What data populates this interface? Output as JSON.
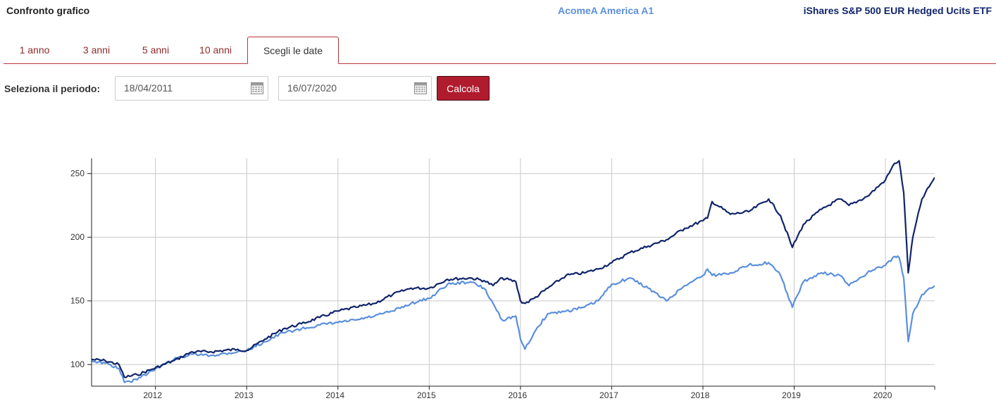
{
  "header": {
    "title": "Confronto grafico",
    "fund_a": "AcomeA America A1",
    "fund_b": "iShares S&P 500 EUR Hedged Ucits ETF"
  },
  "tabs": [
    {
      "label": "1 anno",
      "active": false
    },
    {
      "label": "3 anni",
      "active": false
    },
    {
      "label": "5 anni",
      "active": false
    },
    {
      "label": "10 anni",
      "active": false
    },
    {
      "label": "Scegli le date",
      "active": true
    }
  ],
  "period": {
    "label": "Seleziona il periodo:",
    "start": "18/04/2011",
    "end": "16/07/2020",
    "button": "Calcola"
  },
  "icons": {
    "calendar": "calendar-icon"
  },
  "colors": {
    "fund_a": "#5b8fdc",
    "fund_b": "#10246b",
    "accent": "#b01c2e",
    "tab_text": "#8e2a2a"
  },
  "chart_data": {
    "type": "line",
    "x_ticks": [
      "2012",
      "2013",
      "2014",
      "2015",
      "2016",
      "2017",
      "2018",
      "2019",
      "2020"
    ],
    "y_ticks": [
      100,
      150,
      200,
      250
    ],
    "xlim": [
      2011.3,
      2020.54
    ],
    "ylim": [
      83,
      262
    ],
    "grid": true,
    "series": [
      {
        "name": "iShares S&P 500 EUR Hedged Ucits ETF",
        "color": "#10246b",
        "x": [
          2011.3,
          2011.45,
          2011.6,
          2011.66,
          2011.8,
          2011.95,
          2012.2,
          2012.4,
          2012.6,
          2012.9,
          2013.0,
          2013.2,
          2013.4,
          2013.6,
          2013.8,
          2014.0,
          2014.2,
          2014.4,
          2014.6,
          2014.8,
          2015.0,
          2015.2,
          2015.45,
          2015.6,
          2015.7,
          2015.8,
          2015.95,
          2016.0,
          2016.05,
          2016.15,
          2016.3,
          2016.5,
          2016.7,
          2016.85,
          2017.0,
          2017.2,
          2017.4,
          2017.6,
          2017.8,
          2018.0,
          2018.05,
          2018.1,
          2018.3,
          2018.5,
          2018.72,
          2018.85,
          2018.98,
          2019.1,
          2019.3,
          2019.5,
          2019.6,
          2019.8,
          2020.0,
          2020.1,
          2020.15,
          2020.2,
          2020.25,
          2020.3,
          2020.4,
          2020.54
        ],
        "y": [
          104,
          103,
          100,
          90,
          92,
          96,
          103,
          110,
          110,
          112,
          111,
          120,
          128,
          132,
          137,
          142,
          145,
          148,
          155,
          160,
          160,
          167,
          168,
          166,
          162,
          168,
          165,
          150,
          148,
          152,
          160,
          170,
          172,
          175,
          180,
          188,
          193,
          198,
          207,
          213,
          215,
          228,
          218,
          220,
          230,
          217,
          192,
          210,
          222,
          230,
          225,
          232,
          245,
          258,
          260,
          235,
          172,
          200,
          230,
          247
        ]
      },
      {
        "name": "AcomeA America A1",
        "color": "#5b8fdc",
        "x": [
          2011.3,
          2011.45,
          2011.6,
          2011.66,
          2011.8,
          2011.95,
          2012.2,
          2012.4,
          2012.6,
          2012.9,
          2013.0,
          2013.2,
          2013.4,
          2013.6,
          2013.8,
          2014.0,
          2014.2,
          2014.4,
          2014.6,
          2014.8,
          2015.0,
          2015.2,
          2015.45,
          2015.6,
          2015.7,
          2015.8,
          2015.95,
          2016.0,
          2016.05,
          2016.15,
          2016.3,
          2016.5,
          2016.7,
          2016.85,
          2017.0,
          2017.2,
          2017.4,
          2017.6,
          2017.8,
          2018.0,
          2018.05,
          2018.1,
          2018.3,
          2018.5,
          2018.72,
          2018.85,
          2018.98,
          2019.1,
          2019.3,
          2019.5,
          2019.6,
          2019.8,
          2020.0,
          2020.1,
          2020.15,
          2020.2,
          2020.25,
          2020.3,
          2020.4,
          2020.54
        ],
        "y": [
          103,
          101,
          97,
          86,
          88,
          95,
          104,
          108,
          107,
          110,
          111,
          118,
          125,
          128,
          131,
          133,
          135,
          138,
          142,
          148,
          152,
          163,
          165,
          160,
          148,
          135,
          138,
          120,
          112,
          125,
          140,
          142,
          145,
          150,
          163,
          168,
          160,
          150,
          162,
          170,
          175,
          170,
          172,
          178,
          180,
          170,
          145,
          165,
          172,
          170,
          162,
          172,
          178,
          185,
          184,
          168,
          118,
          140,
          155,
          162
        ]
      }
    ]
  }
}
